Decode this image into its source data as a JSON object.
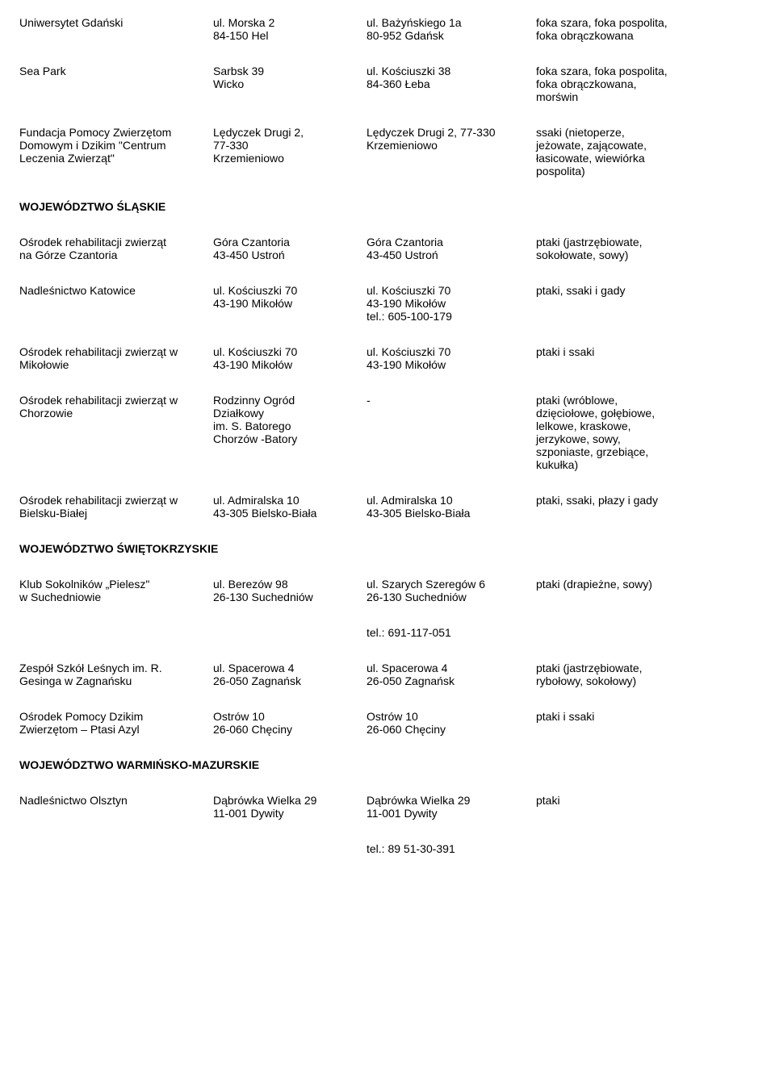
{
  "rows": [
    {
      "c1": [
        "Uniwersytet Gdański"
      ],
      "c2": [
        "ul. Morska 2",
        "84-150 Hel"
      ],
      "c3": [
        "ul. Bażyńskiego 1a",
        "80-952 Gdańsk"
      ],
      "c4": [
        "foka szara, foka pospolita,",
        "foka obrączkowana"
      ]
    },
    {
      "c1": [
        "Sea Park"
      ],
      "c2": [
        "Sarbsk 39",
        "Wicko"
      ],
      "c3": [
        "ul. Kościuszki 38",
        "84-360 Łeba"
      ],
      "c4": [
        "foka szara, foka pospolita,",
        "foka obrączkowana,",
        "morświn"
      ]
    },
    {
      "c1": [
        "Fundacja Pomocy Zwierzętom",
        "Domowym i Dzikim \"Centrum",
        "Leczenia Zwierząt\""
      ],
      "c2": [
        "Lędyczek Drugi 2,",
        "77-330",
        "Krzemieniowo"
      ],
      "c3": [
        "Lędyczek Drugi 2, 77-330",
        "Krzemieniowo"
      ],
      "c4": [
        "ssaki (nietoperze,",
        "jeżowate, zającowate,",
        "łasicowate, wiewiórka",
        "pospolita)"
      ]
    }
  ],
  "heading1": "WOJEWÓDZTWO ŚLĄSKIE",
  "rows2": [
    {
      "c1": [
        "Ośrodek rehabilitacji zwierząt",
        "na Górze Czantoria"
      ],
      "c2": [
        "Góra Czantoria",
        "43-450 Ustroń"
      ],
      "c3": [
        "Góra Czantoria",
        "43-450 Ustroń"
      ],
      "c4": [
        "ptaki (jastrzębiowate,",
        "sokołowate, sowy)"
      ]
    },
    {
      "c1": [
        "Nadleśnictwo Katowice"
      ],
      "c2": [
        "ul. Kościuszki 70",
        "43-190 Mikołów"
      ],
      "c3": [
        "ul. Kościuszki 70",
        "43-190 Mikołów",
        "tel.: 605-100-179"
      ],
      "c4": [
        "ptaki, ssaki i gady"
      ]
    },
    {
      "c1": [
        " Ośrodek rehabilitacji zwierząt w",
        "Mikołowie"
      ],
      "c2": [
        "ul. Kościuszki 70",
        "43-190 Mikołów"
      ],
      "c3": [
        "ul. Kościuszki 70",
        "43-190 Mikołów"
      ],
      "c4": [
        "ptaki i ssaki"
      ]
    },
    {
      "c1": [
        "Ośrodek rehabilitacji zwierząt w",
        "Chorzowie"
      ],
      "c2": [
        " Rodzinny Ogród",
        "Działkowy",
        "im. S. Batorego",
        "Chorzów -Batory"
      ],
      "c3": [
        "-"
      ],
      "c4": [
        "ptaki (wróblowe,",
        "dzięciołowe, gołębiowe,",
        "lelkowe, kraskowe,",
        "jerzykowe, sowy,",
        "szponiaste, grzebiące,",
        "kukułka)"
      ]
    },
    {
      "c1": [
        "Ośrodek rehabilitacji zwierząt w",
        "Bielsku-Białej"
      ],
      "c2": [
        "ul. Admiralska 10",
        "43-305 Bielsko-Biała"
      ],
      "c3": [
        " ul. Admiralska 10",
        "43-305 Bielsko-Biała"
      ],
      "c4": [
        "ptaki, ssaki, płazy i gady"
      ]
    }
  ],
  "heading2": "WOJEWÓDZTWO ŚWIĘTOKRZYSKIE",
  "rows3": [
    {
      "c1": [
        " Klub Sokolników „Pielesz\"",
        "w Suchedniowie"
      ],
      "c2": [
        "ul. Berezów 98",
        "26-130 Suchedniów"
      ],
      "c3": [
        " ul. Szarych Szeregów 6",
        "26-130 Suchedniów"
      ],
      "c4": [
        "ptaki (drapieżne, sowy)"
      ]
    },
    {
      "c1": [
        ""
      ],
      "c2": [
        ""
      ],
      "c3": [
        "tel.: 691-117-051"
      ],
      "c4": [
        ""
      ]
    },
    {
      "c1": [
        " Zespół Szkół Leśnych im. R.",
        "Gesinga w Zagnańsku"
      ],
      "c2": [
        "ul. Spacerowa 4",
        "26-050 Zagnańsk"
      ],
      "c3": [
        "ul. Spacerowa 4",
        "26-050 Zagnańsk"
      ],
      "c4": [
        "ptaki (jastrzębiowate,",
        "rybołowy, sokołowy)"
      ]
    },
    {
      "c1": [
        " Ośrodek Pomocy Dzikim",
        "Zwierzętom – Ptasi Azyl"
      ],
      "c2": [
        "Ostrów 10",
        "26-060 Chęciny"
      ],
      "c3": [
        "Ostrów 10",
        "26-060 Chęciny"
      ],
      "c4": [
        "ptaki i ssaki"
      ]
    }
  ],
  "heading3": "WOJEWÓDZTWO WARMIŃSKO-MAZURSKIE",
  "rows4": [
    {
      "c1": [
        " Nadleśnictwo Olsztyn"
      ],
      "c2": [
        " Dąbrówka Wielka 29",
        "11-001 Dywity"
      ],
      "c3": [
        " Dąbrówka Wielka 29",
        "11-001 Dywity"
      ],
      "c4": [
        "ptaki"
      ]
    },
    {
      "c1": [
        ""
      ],
      "c2": [
        ""
      ],
      "c3": [
        "tel.: 89 51-30-391"
      ],
      "c4": [
        ""
      ]
    }
  ]
}
